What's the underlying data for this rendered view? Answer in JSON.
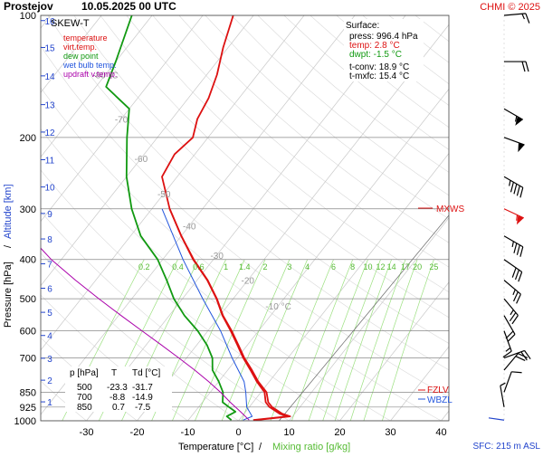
{
  "header": {
    "station": "Prostejov",
    "datetime": "10.05.2025 00 UTC",
    "credit": "CHMI © 2025"
  },
  "legend": {
    "title": "SKEW-T",
    "items": [
      {
        "label": "temperature",
        "color": "#dd1111"
      },
      {
        "label": "virt.temp.",
        "color": "#dd1111"
      },
      {
        "label": "dew point",
        "color": "#119911"
      },
      {
        "label": "wet bulb temp.",
        "color": "#2255dd"
      },
      {
        "label": "updraft v.temp.",
        "color": "#aa00aa"
      }
    ]
  },
  "surface": {
    "title": "Surface:",
    "press": "press: 996.4 hPa",
    "temp": "temp: 2.8 °C",
    "dwpt": "dwpt: -1.5 °C",
    "tconv": "t-conv: 18.9 °C",
    "tmxfc": "t-mxfc: 15.4 °C"
  },
  "table": {
    "headers": [
      "p [hPa]",
      "T",
      "Td [°C]"
    ],
    "rows": [
      [
        "500",
        "-23.3",
        "-31.7"
      ],
      [
        "700",
        "-8.8",
        "-14.9"
      ],
      [
        "850",
        "0.7",
        "-7.5"
      ]
    ]
  },
  "levels": [
    {
      "label": "MXWS",
      "p": 300
    },
    {
      "label": "FZLV",
      "p": 850
    },
    {
      "label": "WBZL",
      "p": 875
    }
  ],
  "footer": {
    "sfc": "SFC: 215 m ASL"
  },
  "chart_data": {
    "type": "line",
    "title": "SKEW-T",
    "xlabel": "Temperature [°C]",
    "xlabel2": "Mixing ratio [g/kg]",
    "ylabel": "Pressure [hPa]",
    "ylabel2": "Altitude [km]",
    "xlim": [
      -35,
      45
    ],
    "ylim": [
      1000,
      100
    ],
    "x_ticks": [
      -30,
      -20,
      -10,
      0,
      10,
      20,
      30,
      40
    ],
    "p_ticks": [
      100,
      200,
      300,
      400,
      500,
      600,
      700,
      850,
      925,
      1000
    ],
    "alt_ticks": [
      1,
      2,
      3,
      4,
      5,
      6,
      7,
      8,
      9,
      10,
      11,
      12,
      13,
      14,
      15,
      16
    ],
    "alt_tick_p": [
      898,
      794,
      701,
      616,
      540,
      471,
      410,
      356,
      308,
      265,
      227,
      194,
      166,
      141,
      120,
      103
    ],
    "isotherm_labels": [
      -80,
      -70,
      -60,
      -50,
      -40,
      -30,
      -20,
      -10
    ],
    "mixing_ratio_labels": [
      "0.2",
      "0.4",
      "0.6",
      "1",
      "1.4",
      "2",
      "3",
      "4",
      "6",
      "8",
      "10",
      "12",
      "14",
      "17",
      "20",
      "25"
    ],
    "series": [
      {
        "name": "temperature",
        "color": "#dd1111",
        "points": [
          [
            996,
            2.8
          ],
          [
            975,
            9
          ],
          [
            960,
            7
          ],
          [
            925,
            4
          ],
          [
            900,
            2.5
          ],
          [
            850,
            0.7
          ],
          [
            800,
            -2.5
          ],
          [
            750,
            -5.5
          ],
          [
            700,
            -8.8
          ],
          [
            650,
            -12
          ],
          [
            600,
            -15.5
          ],
          [
            550,
            -19.5
          ],
          [
            500,
            -23.3
          ],
          [
            450,
            -28
          ],
          [
            400,
            -34
          ],
          [
            350,
            -40
          ],
          [
            300,
            -46.5
          ],
          [
            250,
            -53
          ],
          [
            220,
            -54
          ],
          [
            200,
            -53
          ],
          [
            180,
            -55
          ],
          [
            160,
            -56
          ],
          [
            140,
            -58
          ],
          [
            120,
            -61
          ],
          [
            100,
            -64
          ]
        ]
      },
      {
        "name": "virt.temp.",
        "color": "#dd1111",
        "points": [
          [
            996,
            3.3
          ],
          [
            975,
            9.5
          ],
          [
            960,
            7.5
          ],
          [
            925,
            4.5
          ],
          [
            900,
            3
          ],
          [
            850,
            1.1
          ],
          [
            800,
            -2.2
          ],
          [
            750,
            -5.2
          ],
          [
            700,
            -8.6
          ],
          [
            650,
            -11.8
          ],
          [
            600,
            -15.3
          ],
          [
            550,
            -19.4
          ],
          [
            500,
            -23.2
          ],
          [
            450,
            -27.9
          ],
          [
            400,
            -33.9
          ],
          [
            350,
            -40
          ],
          [
            300,
            -46.5
          ]
        ]
      },
      {
        "name": "dew point",
        "color": "#119911",
        "points": [
          [
            996,
            -1.5
          ],
          [
            975,
            -3
          ],
          [
            950,
            -2
          ],
          [
            925,
            -4
          ],
          [
            900,
            -6
          ],
          [
            850,
            -7.5
          ],
          [
            800,
            -10
          ],
          [
            750,
            -13
          ],
          [
            700,
            -14.9
          ],
          [
            650,
            -18
          ],
          [
            600,
            -22
          ],
          [
            550,
            -27
          ],
          [
            500,
            -31.7
          ],
          [
            450,
            -36
          ],
          [
            400,
            -41
          ],
          [
            350,
            -48
          ],
          [
            300,
            -54
          ],
          [
            250,
            -60
          ],
          [
            200,
            -66
          ],
          [
            170,
            -70
          ],
          [
            150,
            -78
          ],
          [
            130,
            -80
          ],
          [
            100,
            -84
          ]
        ]
      },
      {
        "name": "wet bulb temp.",
        "color": "#2255dd",
        "points": [
          [
            996,
            0.8
          ],
          [
            975,
            2
          ],
          [
            925,
            -0.5
          ],
          [
            850,
            -3
          ],
          [
            800,
            -5
          ],
          [
            700,
            -11
          ],
          [
            600,
            -17.5
          ],
          [
            500,
            -26
          ],
          [
            400,
            -36
          ],
          [
            300,
            -48
          ]
        ]
      },
      {
        "name": "updraft v.temp.",
        "color": "#aa00aa",
        "points": [
          [
            996,
            2
          ],
          [
            950,
            -1
          ],
          [
            900,
            -4.5
          ],
          [
            850,
            -8
          ],
          [
            800,
            -12
          ],
          [
            750,
            -16.5
          ],
          [
            700,
            -21.5
          ],
          [
            650,
            -27
          ],
          [
            600,
            -33
          ],
          [
            550,
            -39.5
          ],
          [
            500,
            -46.5
          ],
          [
            450,
            -54
          ],
          [
            400,
            -62
          ],
          [
            350,
            -70
          ],
          [
            300,
            -79
          ],
          [
            250,
            -89
          ],
          [
            200,
            -100
          ],
          [
            150,
            -113
          ],
          [
            100,
            -130
          ]
        ]
      }
    ],
    "wind_barbs": [
      {
        "p": 100,
        "dir": 265,
        "kt": 15
      },
      {
        "p": 130,
        "dir": 270,
        "kt": 20
      },
      {
        "p": 170,
        "dir": 300,
        "kt": 55
      },
      {
        "p": 200,
        "dir": 290,
        "kt": 50
      },
      {
        "p": 250,
        "dir": 300,
        "kt": 45
      },
      {
        "p": 300,
        "dir": 295,
        "kt": 55
      },
      {
        "p": 350,
        "dir": 300,
        "kt": 35
      },
      {
        "p": 400,
        "dir": 305,
        "kt": 30
      },
      {
        "p": 450,
        "dir": 310,
        "kt": 25
      },
      {
        "p": 500,
        "dir": 320,
        "kt": 25
      },
      {
        "p": 550,
        "dir": 330,
        "kt": 20
      },
      {
        "p": 600,
        "dir": 340,
        "kt": 15
      },
      {
        "p": 700,
        "dir": 250,
        "kt": 20
      },
      {
        "p": 750,
        "dir": 220,
        "kt": 20
      },
      {
        "p": 850,
        "dir": 200,
        "kt": 10
      },
      {
        "p": 925,
        "dir": 170,
        "kt": 5
      }
    ]
  }
}
